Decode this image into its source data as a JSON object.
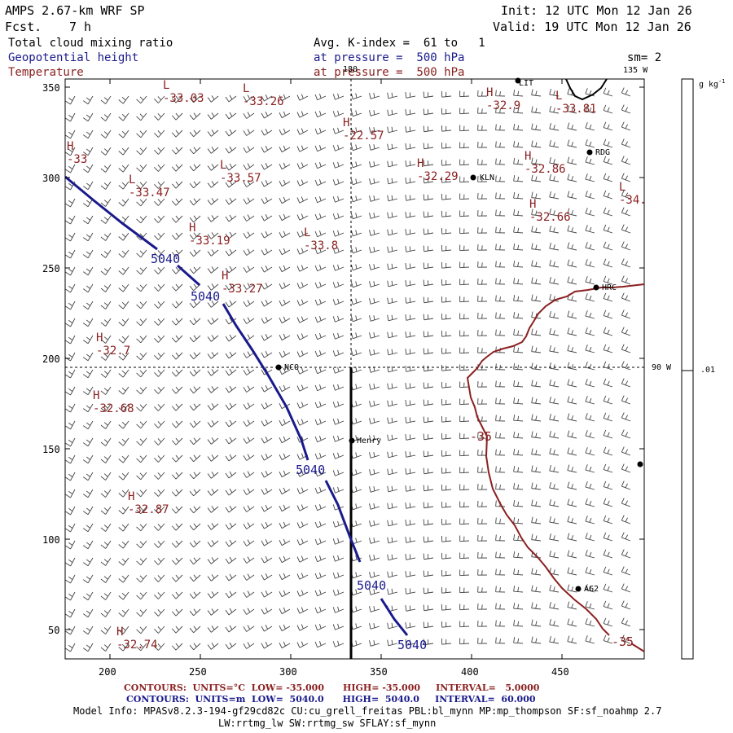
{
  "header": {
    "model": "AMPS 2.67-km WRF SP",
    "forecast_label": "Fcst.",
    "forecast_hours": "7 h",
    "init": "Init: 12 UTC Mon 12 Jan 26",
    "valid": "Valid: 19 UTC Mon 12 Jan 26",
    "field1": "Total cloud mixing ratio",
    "field2": "Geopotential height",
    "field3": "Temperature",
    "avg": "Avg. K-index =  61 to   1",
    "pressure1": "at pressure =  500 hPa",
    "pressure2": "at pressure =  500 hPa",
    "sm": "sm= 2"
  },
  "axes": {
    "x_ticks": [
      "200",
      "250",
      "300",
      "350",
      "400",
      "450"
    ],
    "y_ticks": [
      "350",
      "300",
      "250",
      "200",
      "150",
      "100",
      "50"
    ],
    "meridian_top": "180",
    "meridian_135": "135 W",
    "meridian_90": "90 W"
  },
  "colorbar": {
    "units": "g kg",
    "units_sup": "-1",
    "value": ".01"
  },
  "stations": [
    {
      "name": "LIT"
    },
    {
      "name": "RDG"
    },
    {
      "name": "KLN"
    },
    {
      "name": "HRC"
    },
    {
      "name": "NCO"
    },
    {
      "name": "Henry"
    },
    {
      "name": "AG2"
    },
    {
      "name": ""
    }
  ],
  "extrema": [
    {
      "type": "L",
      "value": "-33.03"
    },
    {
      "type": "L",
      "value": "-33.26"
    },
    {
      "type": "H",
      "value": "-22.57"
    },
    {
      "type": "H",
      "value": "-32.9"
    },
    {
      "type": "L",
      "value": "-33.81"
    },
    {
      "type": "H",
      "value": "-33"
    },
    {
      "type": "L",
      "value": "-33.47"
    },
    {
      "type": "L",
      "value": "-33.57"
    },
    {
      "type": "H",
      "value": "-32.29"
    },
    {
      "type": "H",
      "value": "-32.86"
    },
    {
      "type": "L",
      "value": "-34."
    },
    {
      "type": "H",
      "value": "-32.66"
    },
    {
      "type": "H",
      "value": "-33.19"
    },
    {
      "type": "L",
      "value": "-33.8"
    },
    {
      "type": "H",
      "value": "-33.27"
    },
    {
      "type": "H",
      "value": "-32.7"
    },
    {
      "type": "H",
      "value": "-32.68"
    },
    {
      "type": "H",
      "value": "-32.87"
    },
    {
      "type": "H",
      "value": "-32.74"
    }
  ],
  "contour_labels": {
    "height": [
      "5040",
      "5040",
      "5040",
      "5040",
      "5040"
    ],
    "temperature": [
      "-35",
      "-35"
    ]
  },
  "footer": {
    "temp_contours": "CONTOURS:  UNITS=°C  LOW= -35.000      HIGH= -35.000     INTERVAL=   5.0000",
    "height_contours": "CONTOURS:  UNITS=m  LOW=  5040.0      HIGH=  5040.0     INTERVAL=  60.000",
    "model_info": "Model Info: MPASv8.2.3-194-gf29cd82c CU:cu_grell_freitas PBL:bl_mynn MP:mp_thompson SF:sf_noahmp 2.7",
    "model_info2": "LW:rrtmg_lw SW:rrtmg_sw SFLAY:sf_mynn"
  },
  "colors": {
    "height_contour": "#1a1a8c",
    "temperature_contour": "#8b2020",
    "field2_label": "#1a1a8c",
    "field3_label": "#8b2020"
  }
}
